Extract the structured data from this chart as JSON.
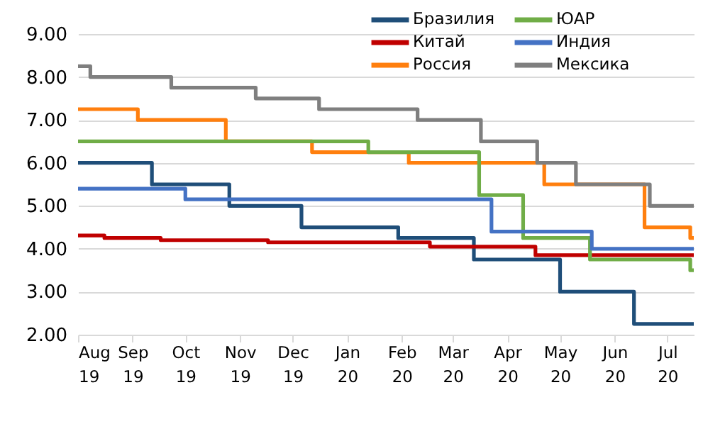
{
  "chart_data": {
    "type": "step",
    "xlim": [
      "2019-08-01",
      "2020-07-16"
    ],
    "ylim": [
      2,
      9
    ],
    "xticks": [
      {
        "value": "2019-08-01",
        "label": "Aug 19"
      },
      {
        "value": "2019-09-01",
        "label": "Sep 19"
      },
      {
        "value": "2019-10-01",
        "label": "Oct 19"
      },
      {
        "value": "2019-11-01",
        "label": "Nov 19"
      },
      {
        "value": "2019-12-01",
        "label": "Dec 19"
      },
      {
        "value": "2020-01-01",
        "label": "Jan 20"
      },
      {
        "value": "2020-02-01",
        "label": "Feb 20"
      },
      {
        "value": "2020-03-01",
        "label": "Mar 20"
      },
      {
        "value": "2020-04-01",
        "label": "Apr 20"
      },
      {
        "value": "2020-05-01",
        "label": "May 20"
      },
      {
        "value": "2020-06-01",
        "label": "Jun 20"
      },
      {
        "value": "2020-07-01",
        "label": "Jul 20"
      }
    ],
    "yticks": [
      {
        "value": 2,
        "label": "2.00"
      },
      {
        "value": 3,
        "label": "3.00"
      },
      {
        "value": 4,
        "label": "4.00"
      },
      {
        "value": 5,
        "label": "5.00"
      },
      {
        "value": 6,
        "label": "6.00"
      },
      {
        "value": 7,
        "label": "7.00"
      },
      {
        "value": 8,
        "label": "8.00"
      },
      {
        "value": 9,
        "label": "9.00"
      }
    ],
    "grid": "y",
    "legend": "top right",
    "marker": "none",
    "line_style": "solid",
    "series": [
      {
        "name": "Бразилия",
        "color": "#1f4e79",
        "x": [
          "2019-08-01",
          "2019-09-12",
          "2019-10-26",
          "2019-12-06",
          "2020-01-30",
          "2020-03-13",
          "2020-05-01",
          "2020-06-12",
          "2020-07-16"
        ],
        "values": [
          6.0,
          5.5,
          5.0,
          4.5,
          4.25,
          3.75,
          3.0,
          2.25,
          2.25
        ]
      },
      {
        "name": "Китай",
        "color": "#c00000",
        "x": [
          "2019-08-01",
          "2019-08-16",
          "2019-09-17",
          "2019-11-17",
          "2020-02-17",
          "2020-04-17",
          "2020-07-16"
        ],
        "values": [
          4.31,
          4.25,
          4.2,
          4.15,
          4.05,
          3.85,
          3.85
        ]
      },
      {
        "name": "Россия",
        "color": "#ff7f0e",
        "x": [
          "2019-08-01",
          "2019-09-04",
          "2019-10-24",
          "2019-12-12",
          "2020-02-05",
          "2020-04-22",
          "2020-06-18",
          "2020-07-14",
          "2020-07-16"
        ],
        "values": [
          7.25,
          7.0,
          6.5,
          6.25,
          6.0,
          5.5,
          4.5,
          4.25,
          4.25
        ]
      },
      {
        "name": "ЮАР",
        "color": "#70ad47",
        "x": [
          "2019-08-01",
          "2020-01-13",
          "2020-03-16",
          "2020-04-10",
          "2020-05-18",
          "2020-07-14",
          "2020-07-16"
        ],
        "values": [
          6.5,
          6.25,
          5.25,
          4.25,
          3.75,
          3.5,
          3.5
        ]
      },
      {
        "name": "Индия",
        "color": "#4472c4",
        "x": [
          "2019-08-01",
          "2019-10-01",
          "2020-03-23",
          "2020-05-19",
          "2020-07-16"
        ],
        "values": [
          5.4,
          5.15,
          4.4,
          4.0,
          4.0
        ]
      },
      {
        "name": "Мексика",
        "color": "#7f7f7f",
        "x": [
          "2019-08-01",
          "2019-08-08",
          "2019-09-23",
          "2019-11-10",
          "2019-12-16",
          "2020-02-10",
          "2020-03-17",
          "2020-04-18",
          "2020-05-10",
          "2020-06-21",
          "2020-07-16"
        ],
        "values": [
          8.25,
          8.0,
          7.75,
          7.5,
          7.25,
          7.0,
          6.5,
          6.0,
          5.5,
          5.0,
          5.0
        ]
      }
    ]
  }
}
